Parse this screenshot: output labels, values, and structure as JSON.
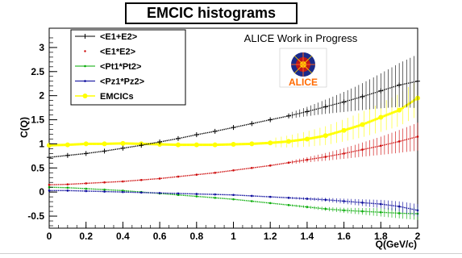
{
  "title": "EMCIC histograms",
  "annotation": "ALICE Work in Progress",
  "logo_text": "ALICE",
  "chart_data": {
    "type": "scatter",
    "title": "EMCIC histograms",
    "xlabel": "Q(GeV/c)",
    "ylabel": "C(Q)",
    "xlim": [
      0,
      2
    ],
    "ylim": [
      -0.75,
      3.4
    ],
    "xticks": [
      "0",
      "0.2",
      "0.4",
      "0.6",
      "0.8",
      "1",
      "1.2",
      "1.4",
      "1.6",
      "1.8",
      "2"
    ],
    "yticks": [
      "-0.5",
      "0",
      "0.5",
      "1",
      "1.5",
      "2",
      "2.5",
      "3"
    ],
    "grid": false,
    "legend_position": "top-left",
    "series": [
      {
        "name": "<E1+E2>",
        "color": "#000000",
        "marker": "cross",
        "x": [
          0,
          0.1,
          0.2,
          0.3,
          0.4,
          0.5,
          0.6,
          0.7,
          0.8,
          0.9,
          1.0,
          1.1,
          1.2,
          1.3,
          1.4,
          1.5,
          1.6,
          1.7,
          1.8,
          1.9,
          2.0
        ],
        "y": [
          0.72,
          0.76,
          0.8,
          0.85,
          0.91,
          0.97,
          1.04,
          1.11,
          1.19,
          1.26,
          1.34,
          1.42,
          1.5,
          1.58,
          1.67,
          1.77,
          1.87,
          1.98,
          2.1,
          2.22,
          2.3
        ]
      },
      {
        "name": "<E1*E2>",
        "color": "#cc0000",
        "marker": "dot",
        "x": [
          0,
          0.1,
          0.2,
          0.3,
          0.4,
          0.5,
          0.6,
          0.7,
          0.8,
          0.9,
          1.0,
          1.1,
          1.2,
          1.3,
          1.4,
          1.5,
          1.6,
          1.7,
          1.8,
          1.9,
          2.0
        ],
        "y": [
          0.15,
          0.16,
          0.18,
          0.2,
          0.22,
          0.25,
          0.28,
          0.32,
          0.36,
          0.4,
          0.45,
          0.5,
          0.55,
          0.61,
          0.67,
          0.73,
          0.8,
          0.88,
          0.96,
          1.05,
          1.15
        ]
      },
      {
        "name": "<Pt1*Pt2>",
        "color": "#00aa00",
        "marker": "dot",
        "x": [
          0,
          0.1,
          0.2,
          0.3,
          0.4,
          0.5,
          0.6,
          0.7,
          0.8,
          0.9,
          1.0,
          1.1,
          1.2,
          1.3,
          1.4,
          1.5,
          1.6,
          1.7,
          1.8,
          1.9,
          2.0
        ],
        "y": [
          0.1,
          0.09,
          0.07,
          0.05,
          0.03,
          0.0,
          -0.03,
          -0.06,
          -0.09,
          -0.12,
          -0.15,
          -0.19,
          -0.23,
          -0.27,
          -0.31,
          -0.35,
          -0.38,
          -0.4,
          -0.42,
          -0.44,
          -0.45
        ]
      },
      {
        "name": "<Pz1*Pz2>",
        "color": "#000099",
        "marker": "dot",
        "x": [
          0,
          0.1,
          0.2,
          0.3,
          0.4,
          0.5,
          0.6,
          0.7,
          0.8,
          0.9,
          1.0,
          1.1,
          1.2,
          1.3,
          1.4,
          1.5,
          1.6,
          1.7,
          1.8,
          1.9,
          2.0
        ],
        "y": [
          0.03,
          0.03,
          0.02,
          0.01,
          0.0,
          -0.01,
          -0.02,
          -0.03,
          -0.04,
          -0.05,
          -0.06,
          -0.08,
          -0.1,
          -0.12,
          -0.14,
          -0.16,
          -0.19,
          -0.22,
          -0.25,
          -0.3,
          -0.38
        ]
      },
      {
        "name": "EMCICs",
        "color": "#ffff00",
        "marker": "circle",
        "x": [
          0,
          0.1,
          0.2,
          0.3,
          0.4,
          0.5,
          0.6,
          0.7,
          0.8,
          0.9,
          1.0,
          1.1,
          1.2,
          1.3,
          1.4,
          1.5,
          1.6,
          1.7,
          1.8,
          1.9,
          2.0
        ],
        "y": [
          0.97,
          0.98,
          1.0,
          1.0,
          1.01,
          1.0,
          0.99,
          0.98,
          0.98,
          0.98,
          0.99,
          1.0,
          1.02,
          1.05,
          1.1,
          1.17,
          1.28,
          1.4,
          1.55,
          1.7,
          1.95
        ]
      }
    ]
  }
}
